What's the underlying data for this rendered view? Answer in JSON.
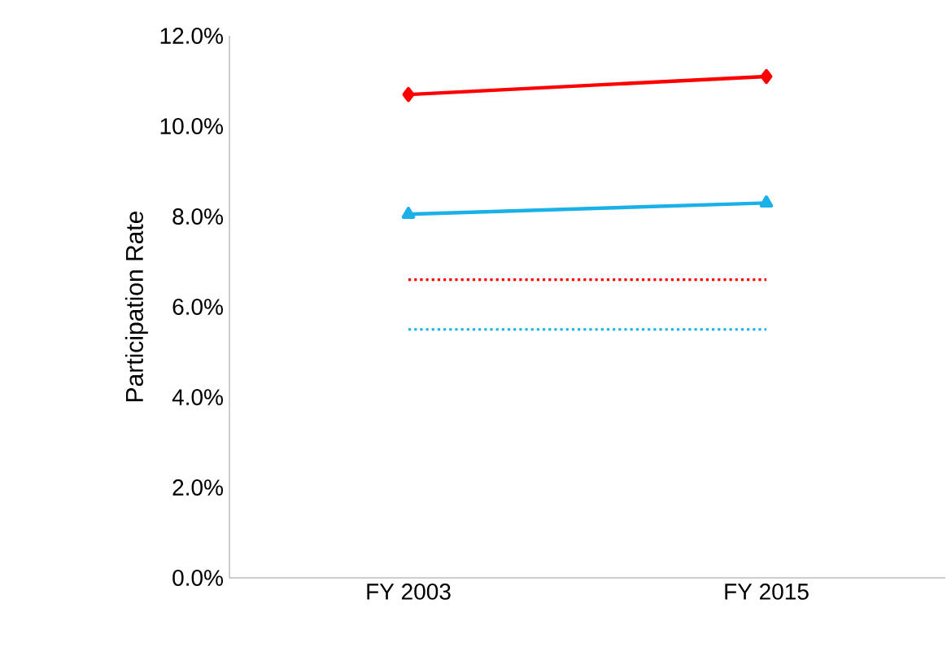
{
  "chart_data": {
    "type": "line",
    "ylabel": "Participation Rate",
    "categories": [
      "FY 2003",
      "FY 2015"
    ],
    "series": [
      {
        "color": "#ff0000",
        "values": [
          10.7,
          11.1
        ],
        "marker": "diamond",
        "line_style": "solid"
      },
      {
        "color": "#1ab0e8",
        "values": [
          8.05,
          8.3
        ],
        "marker": "triangle",
        "line_style": "solid"
      },
      {
        "color": "#ff0000",
        "values": [
          6.6,
          6.6
        ],
        "marker": "none",
        "line_style": "dotted"
      },
      {
        "color": "#1ab0e8",
        "values": [
          5.5,
          5.5
        ],
        "marker": "none",
        "line_style": "dotted"
      }
    ],
    "ylim": [
      0,
      12
    ],
    "yticks": [
      {
        "value": 0,
        "label": "0.0%"
      },
      {
        "value": 2,
        "label": "2.0%"
      },
      {
        "value": 4,
        "label": "4.0%"
      },
      {
        "value": 6,
        "label": "6.0%"
      },
      {
        "value": 8,
        "label": "8.0%"
      },
      {
        "value": 10,
        "label": "10.0%"
      },
      {
        "value": 12,
        "label": "12.0%"
      }
    ],
    "grid": false
  }
}
